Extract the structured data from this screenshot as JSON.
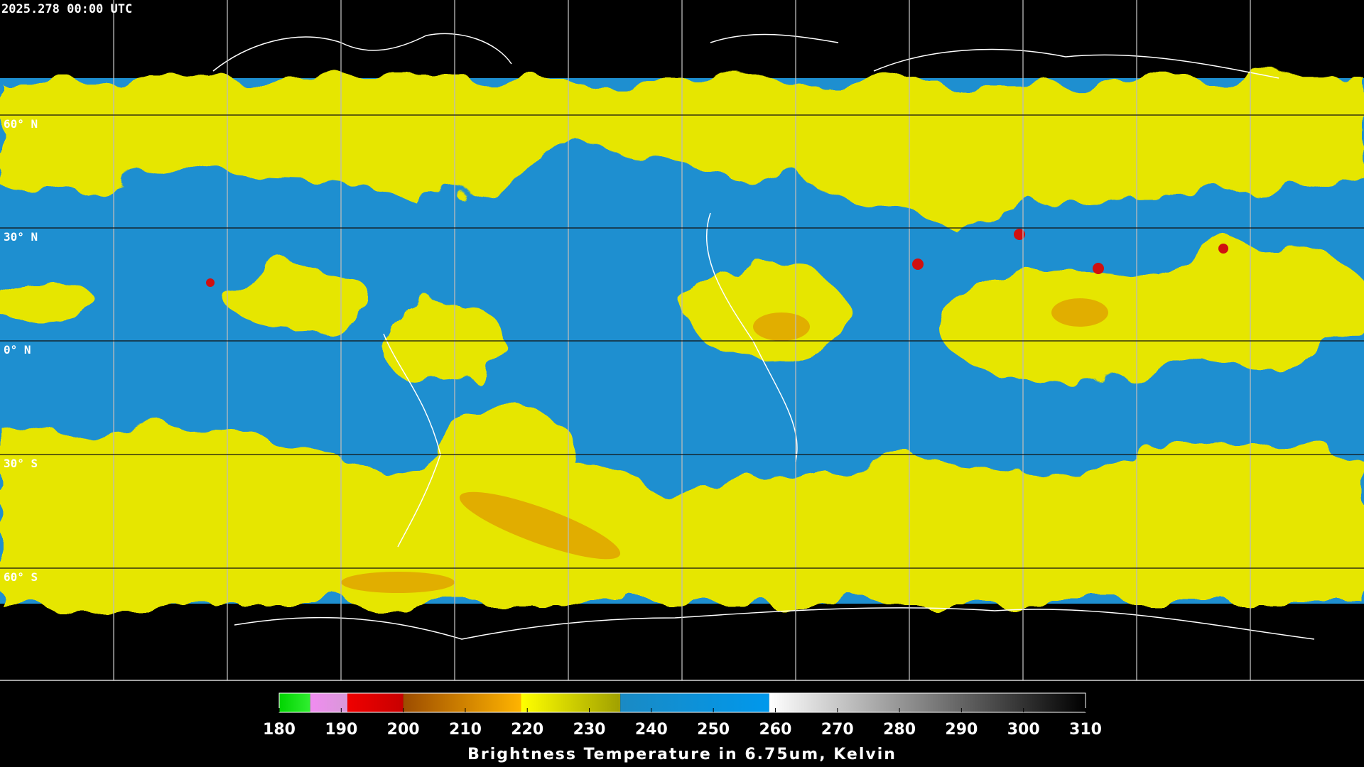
{
  "header": {
    "timestamp": "2025.278 00:00 UTC"
  },
  "map": {
    "lat_labels": [
      "60° N",
      "30° N",
      "0° N",
      "30° S",
      "60° S"
    ]
  },
  "colorbar": {
    "title": "Brightness Temperature in 6.75um, Kelvin",
    "range": [
      180,
      310
    ],
    "ticks": [
      180,
      190,
      200,
      210,
      220,
      230,
      240,
      250,
      260,
      270,
      280,
      290,
      300,
      310
    ],
    "segments": [
      {
        "from": 180,
        "to": 185,
        "colors": [
          "#00d400",
          "#30ee30"
        ]
      },
      {
        "from": 185,
        "to": 191,
        "colors": [
          "#f08cf0",
          "#d898d8"
        ]
      },
      {
        "from": 191,
        "to": 200,
        "colors": [
          "#f00000",
          "#c80000"
        ]
      },
      {
        "from": 200,
        "to": 219,
        "colors": [
          "#9c4c00",
          "#ffb400"
        ]
      },
      {
        "from": 219,
        "to": 235,
        "colors": [
          "#ffff00",
          "#a0a000"
        ]
      },
      {
        "from": 235,
        "to": 259,
        "colors": [
          "#1a8ac4",
          "#0098ec"
        ]
      },
      {
        "from": 259,
        "to": 310,
        "colors": [
          "#ffffff",
          "#000000"
        ]
      }
    ]
  }
}
